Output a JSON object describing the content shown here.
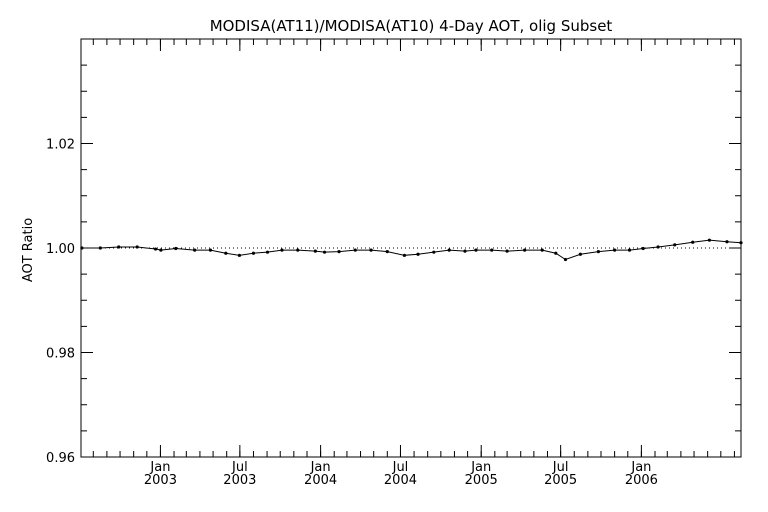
{
  "chart_data": {
    "type": "line",
    "title": "MODISA(AT11)/MODISA(AT10) 4-Day AOT, olig Subset",
    "xlabel": "",
    "ylabel": "AOT Ratio",
    "xlim": [
      "2002-07-04",
      "2006-08-16"
    ],
    "ylim": [
      0.96,
      1.04
    ],
    "yticks": [
      {
        "value": 0.96,
        "label": "0.96"
      },
      {
        "value": 0.98,
        "label": "0.98"
      },
      {
        "value": 1.0,
        "label": "1.00"
      },
      {
        "value": 1.02,
        "label": "1.02"
      }
    ],
    "xticks": [
      {
        "date": "2003-01-01",
        "month": "Jan",
        "year": "2003"
      },
      {
        "date": "2003-07-01",
        "month": "Jul",
        "year": "2003"
      },
      {
        "date": "2004-01-01",
        "month": "Jan",
        "year": "2004"
      },
      {
        "date": "2004-07-01",
        "month": "Jul",
        "year": "2004"
      },
      {
        "date": "2005-01-01",
        "month": "Jan",
        "year": "2005"
      },
      {
        "date": "2005-07-01",
        "month": "Jul",
        "year": "2005"
      },
      {
        "date": "2006-01-01",
        "month": "Jan",
        "year": "2006"
      }
    ],
    "reference_line": {
      "y": 1.0,
      "style": "dotted"
    },
    "grid": false,
    "series": [
      {
        "points": [
          [
            "2002-07-06",
            1.0
          ],
          [
            "2002-08-17",
            1.0
          ],
          [
            "2002-09-28",
            1.0002
          ],
          [
            "2002-11-09",
            1.0002
          ],
          [
            "2002-12-21",
            0.9998
          ],
          [
            "2003-01-02",
            0.9996
          ],
          [
            "2003-02-05",
            0.9999
          ],
          [
            "2003-03-20",
            0.9996
          ],
          [
            "2003-04-25",
            0.9996
          ],
          [
            "2003-05-30",
            0.999
          ],
          [
            "2003-06-30",
            0.9986
          ],
          [
            "2003-08-01",
            0.999
          ],
          [
            "2003-09-02",
            0.9992
          ],
          [
            "2003-10-05",
            0.9996
          ],
          [
            "2003-11-10",
            0.9996
          ],
          [
            "2003-12-20",
            0.9994
          ],
          [
            "2004-01-10",
            0.9992
          ],
          [
            "2004-02-12",
            0.9993
          ],
          [
            "2004-03-20",
            0.9996
          ],
          [
            "2004-04-25",
            0.9996
          ],
          [
            "2004-06-01",
            0.9993
          ],
          [
            "2004-07-10",
            0.9986
          ],
          [
            "2004-08-10",
            0.9988
          ],
          [
            "2004-09-15",
            0.9992
          ],
          [
            "2004-10-20",
            0.9996
          ],
          [
            "2004-11-25",
            0.9994
          ],
          [
            "2004-12-20",
            0.9996
          ],
          [
            "2005-01-25",
            0.9996
          ],
          [
            "2005-03-01",
            0.9994
          ],
          [
            "2005-04-10",
            0.9996
          ],
          [
            "2005-05-20",
            0.9996
          ],
          [
            "2005-06-20",
            0.999
          ],
          [
            "2005-07-12",
            0.9978
          ],
          [
            "2005-08-15",
            0.9988
          ],
          [
            "2005-09-25",
            0.9993
          ],
          [
            "2005-11-01",
            0.9996
          ],
          [
            "2005-12-05",
            0.9996
          ],
          [
            "2006-01-05",
            0.9999
          ],
          [
            "2006-02-08",
            1.0002
          ],
          [
            "2006-03-18",
            1.0006
          ],
          [
            "2006-04-28",
            1.0011
          ],
          [
            "2006-06-05",
            1.0015
          ],
          [
            "2006-07-15",
            1.0012
          ],
          [
            "2006-08-16",
            1.001
          ]
        ]
      }
    ]
  }
}
